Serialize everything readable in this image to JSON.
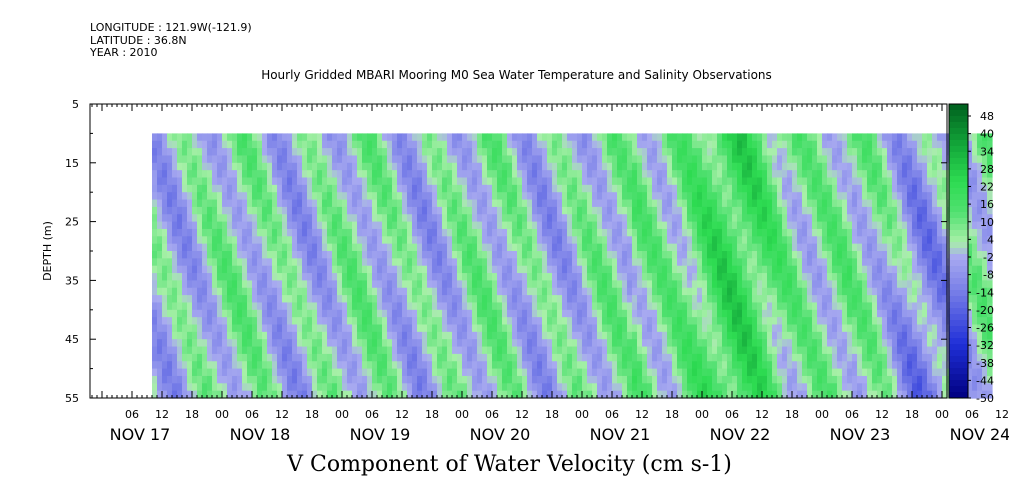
{
  "meta": {
    "longitude": "LONGITUDE : 121.9W(-121.9)",
    "latitude": "LATITUDE : 36.8N",
    "year": "YEAR : 2010"
  },
  "chart_data": {
    "type": "heatmap",
    "title": "Hourly Gridded MBARI Mooring M0 Sea Water Temperature and Salinity Observations",
    "xlabel": "V Component of Water Velocity (cm s-1)",
    "ylabel": "DEPTH (m)",
    "y_ticks": [
      5,
      15,
      25,
      35,
      45,
      55
    ],
    "ylim": [
      55,
      5
    ],
    "x_hour_ticks": [
      "06",
      "12",
      "18",
      "00",
      "06",
      "12",
      "18",
      "00",
      "06",
      "12",
      "18",
      "00",
      "06",
      "12",
      "18",
      "00",
      "06",
      "12",
      "18",
      "00",
      "06",
      "12",
      "18",
      "00",
      "06",
      "12",
      "18",
      "00",
      "06",
      "12",
      "18",
      "00"
    ],
    "x_day_labels": [
      "NOV 17",
      "NOV 18",
      "NOV 19",
      "NOV 20",
      "NOV 21",
      "NOV 22",
      "NOV 23",
      "NOV 24"
    ],
    "data_depth_range_m": [
      10,
      55
    ],
    "colorbar_ticks": [
      48,
      40,
      34,
      28,
      22,
      16,
      10,
      4,
      -2,
      -8,
      -14,
      -20,
      -26,
      -32,
      -38,
      -44,
      -50
    ],
    "colorbar_range": [
      -50,
      48
    ],
    "colors": {
      "strong_negative": "#000080",
      "negative": "#a8aaf0",
      "near_zero": "#a8f0a8",
      "positive": "#2edc52",
      "strong_positive": "#005f1e"
    }
  }
}
